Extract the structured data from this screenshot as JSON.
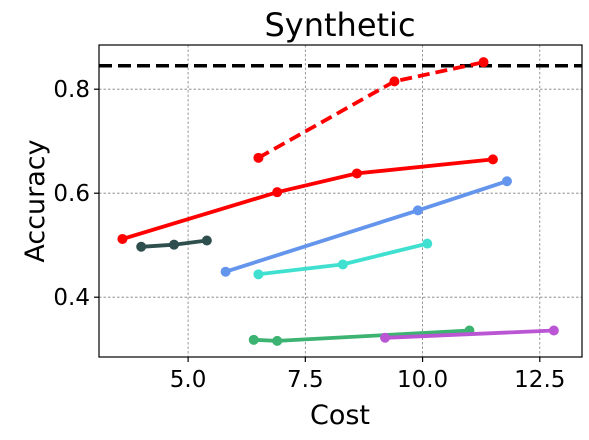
{
  "chart_data": {
    "type": "line",
    "title": "Synthetic",
    "xlabel": "Cost",
    "ylabel": "Accuracy",
    "xlim": [
      3.1,
      13.4
    ],
    "ylim": [
      0.285,
      0.885
    ],
    "xticks": [
      5.0,
      7.5,
      10.0,
      12.5
    ],
    "xtick_labels": [
      "5.0",
      "7.5",
      "10.0",
      "12.5"
    ],
    "yticks": [
      0.4,
      0.6,
      0.8
    ],
    "ytick_labels": [
      "0.4",
      "0.6",
      "0.8"
    ],
    "grid": true,
    "reference_line": {
      "y": 0.845,
      "color": "#000000",
      "style": "dashed"
    },
    "series": [
      {
        "color": "#ff0000",
        "style": "dashed",
        "x": [
          6.5,
          9.4,
          11.3
        ],
        "y": [
          0.668,
          0.815,
          0.852
        ]
      },
      {
        "color": "#ff0000",
        "style": "solid",
        "x": [
          3.6,
          6.9,
          8.6,
          11.5
        ],
        "y": [
          0.512,
          0.602,
          0.638,
          0.665
        ]
      },
      {
        "color": "#6495ed",
        "style": "solid",
        "x": [
          5.8,
          9.9,
          11.8
        ],
        "y": [
          0.449,
          0.567,
          0.623
        ]
      },
      {
        "color": "#40e0d0",
        "style": "solid",
        "x": [
          6.5,
          8.3,
          10.1
        ],
        "y": [
          0.444,
          0.463,
          0.503
        ]
      },
      {
        "color": "#2f4f4f",
        "style": "solid",
        "x": [
          4.0,
          4.7,
          5.4
        ],
        "y": [
          0.497,
          0.501,
          0.509
        ]
      },
      {
        "color": "#3cb371",
        "style": "solid",
        "x": [
          6.4,
          6.9,
          11.0
        ],
        "y": [
          0.318,
          0.316,
          0.336
        ]
      },
      {
        "color": "#ba55d3",
        "style": "solid",
        "x": [
          9.2,
          12.8
        ],
        "y": [
          0.322,
          0.336
        ]
      }
    ]
  }
}
